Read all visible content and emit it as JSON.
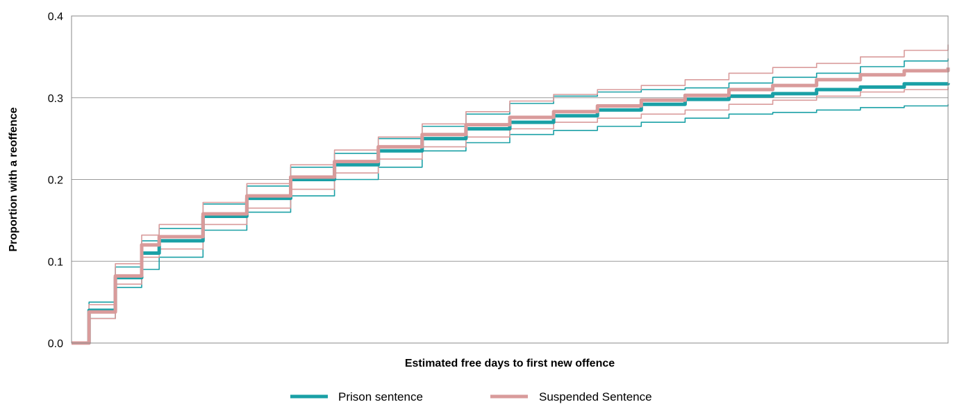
{
  "chart_data": {
    "type": "line",
    "title": "",
    "xlabel": "Estimated free days to first new offence",
    "ylabel": "Proportion with a reoffence",
    "ylim": [
      0,
      0.4
    ],
    "yticks": [
      "0.0",
      "0.1",
      "0.2",
      "0.3",
      "0.4"
    ],
    "xlim": [
      0,
      1
    ],
    "grid": "horizontal",
    "legend_position": "bottom",
    "legend": [
      {
        "name": "Prison sentence",
        "color": "#1aa0a6"
      },
      {
        "name": "Suspended Sentence",
        "color": "#d99b9b"
      }
    ],
    "x": [
      0.0,
      0.02,
      0.05,
      0.08,
      0.1,
      0.15,
      0.2,
      0.25,
      0.3,
      0.35,
      0.4,
      0.45,
      0.5,
      0.55,
      0.6,
      0.65,
      0.7,
      0.75,
      0.8,
      0.85,
      0.9,
      0.95,
      1.0
    ],
    "series": [
      {
        "name": "Prison sentence",
        "role": "estimate",
        "color": "#1aa0a6",
        "values": [
          0.0,
          0.04,
          0.08,
          0.11,
          0.125,
          0.155,
          0.177,
          0.2,
          0.218,
          0.235,
          0.25,
          0.262,
          0.27,
          0.278,
          0.285,
          0.292,
          0.298,
          0.302,
          0.305,
          0.31,
          0.313,
          0.317,
          0.318
        ]
      },
      {
        "name": "Prison sentence",
        "role": "upper",
        "color": "#1aa0a6",
        "values": [
          0.0,
          0.05,
          0.093,
          0.125,
          0.14,
          0.17,
          0.192,
          0.215,
          0.232,
          0.25,
          0.265,
          0.28,
          0.293,
          0.302,
          0.307,
          0.31,
          0.312,
          0.318,
          0.325,
          0.33,
          0.338,
          0.345,
          0.348
        ]
      },
      {
        "name": "Prison sentence",
        "role": "lower",
        "color": "#1aa0a6",
        "values": [
          0.0,
          0.03,
          0.068,
          0.09,
          0.105,
          0.138,
          0.16,
          0.18,
          0.2,
          0.215,
          0.235,
          0.245,
          0.255,
          0.26,
          0.265,
          0.27,
          0.275,
          0.28,
          0.282,
          0.285,
          0.288,
          0.29,
          0.292
        ]
      },
      {
        "name": "Suspended Sentence",
        "role": "estimate",
        "color": "#d99b9b",
        "values": [
          0.0,
          0.038,
          0.082,
          0.12,
          0.13,
          0.158,
          0.18,
          0.203,
          0.222,
          0.24,
          0.255,
          0.267,
          0.276,
          0.283,
          0.29,
          0.297,
          0.303,
          0.31,
          0.315,
          0.322,
          0.328,
          0.333,
          0.337
        ]
      },
      {
        "name": "Suspended Sentence",
        "role": "upper",
        "color": "#d99b9b",
        "values": [
          0.0,
          0.047,
          0.097,
          0.132,
          0.145,
          0.172,
          0.195,
          0.218,
          0.236,
          0.252,
          0.268,
          0.283,
          0.296,
          0.304,
          0.31,
          0.315,
          0.322,
          0.33,
          0.337,
          0.342,
          0.35,
          0.358,
          0.365
        ]
      },
      {
        "name": "Suspended Sentence",
        "role": "lower",
        "color": "#d99b9b",
        "values": [
          0.0,
          0.03,
          0.072,
          0.105,
          0.115,
          0.145,
          0.165,
          0.188,
          0.208,
          0.225,
          0.24,
          0.252,
          0.262,
          0.27,
          0.275,
          0.28,
          0.285,
          0.292,
          0.297,
          0.302,
          0.307,
          0.31,
          0.313
        ]
      }
    ]
  }
}
